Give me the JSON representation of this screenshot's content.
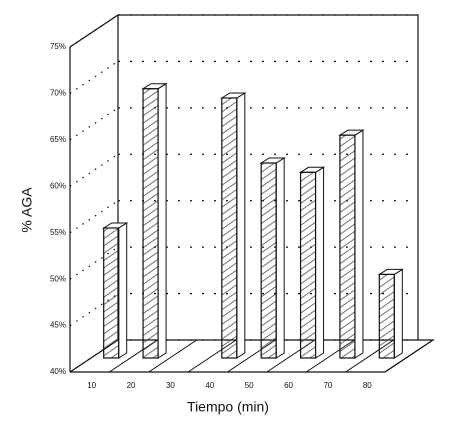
{
  "chart_data": {
    "type": "bar3d",
    "y_label": "% AGA",
    "x_label": "Tiempo (min)",
    "categories": [
      "10",
      "20",
      "30",
      "40",
      "50",
      "60",
      "70",
      "80"
    ],
    "values": [
      54,
      69,
      null,
      68,
      61,
      60,
      64,
      49
    ],
    "color": "#ffffff",
    "ylim": [
      40,
      75
    ],
    "yticks": [
      {
        "value": 40,
        "label": "40%"
      },
      {
        "value": 45,
        "label": "45%"
      },
      {
        "value": 50,
        "label": "50%"
      },
      {
        "value": 55,
        "label": "55%"
      },
      {
        "value": 60,
        "label": "60%"
      },
      {
        "value": 65,
        "label": "65%"
      },
      {
        "value": 70,
        "label": "70%"
      },
      {
        "value": 75,
        "label": "75%"
      }
    ],
    "grid": true
  }
}
